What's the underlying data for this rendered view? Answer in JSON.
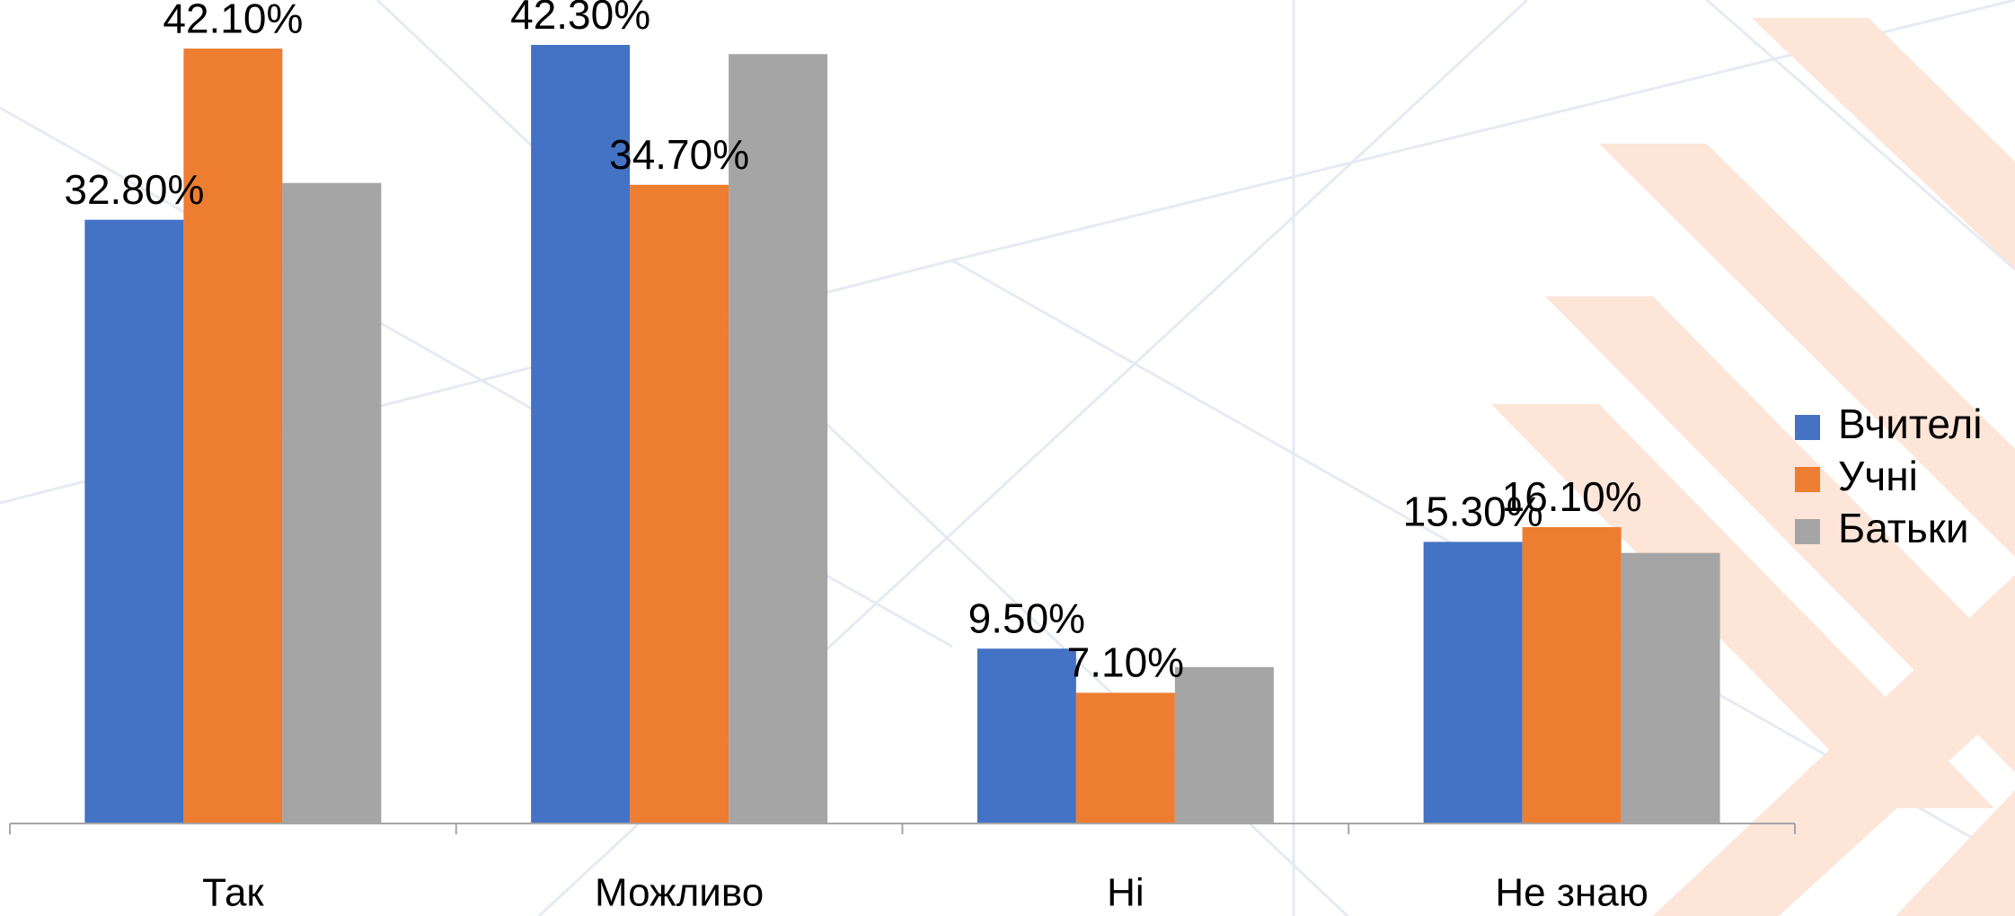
{
  "chart_data": {
    "type": "bar",
    "categories": [
      "Так",
      "Можливо",
      "Ні",
      "Не знаю"
    ],
    "series": [
      {
        "name": "Вчителі",
        "color": "#4472c4",
        "values": [
          32.8,
          42.3,
          9.5,
          15.3
        ],
        "value_labels": [
          "32.80%",
          "42.30%",
          "9.50%",
          "15.30%"
        ]
      },
      {
        "name": "Учні",
        "color": "#ed7d31",
        "values": [
          42.1,
          34.7,
          7.1,
          16.1
        ],
        "value_labels": [
          "42.10%",
          "34.70%",
          "7.10%",
          "16.10%"
        ]
      },
      {
        "name": "Батьки",
        "color": "#a5a5a5",
        "values": [
          34.8,
          41.8,
          8.5,
          14.7
        ]
      }
    ],
    "legend": "right"
  }
}
